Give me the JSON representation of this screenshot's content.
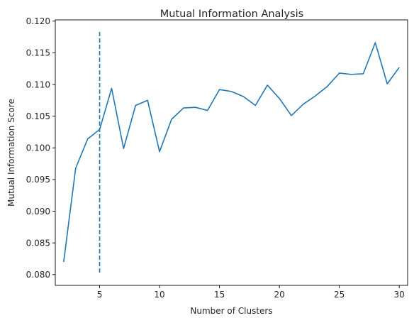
{
  "chart_data": {
    "type": "line",
    "title": "Mutual Information Analysis",
    "xlabel": "Number of Clusters",
    "ylabel": "Mutual Information Score",
    "xlim": [
      1.3,
      30.7
    ],
    "ylim": [
      0.0783,
      0.1202
    ],
    "x_ticks": [
      5,
      10,
      15,
      20,
      25,
      30
    ],
    "x_tick_labels": [
      "5",
      "10",
      "15",
      "20",
      "25",
      "30"
    ],
    "y_ticks": [
      0.08,
      0.085,
      0.09,
      0.095,
      0.1,
      0.105,
      0.11,
      0.115,
      0.12
    ],
    "y_tick_labels": [
      "0.080",
      "0.085",
      "0.090",
      "0.095",
      "0.100",
      "0.105",
      "0.110",
      "0.115",
      "0.120"
    ],
    "grid": false,
    "series": [
      {
        "name": "mutual_information",
        "color": "#1f77b4",
        "style": "solid",
        "x": [
          2,
          3,
          4,
          5,
          6,
          7,
          8,
          9,
          10,
          11,
          12,
          13,
          14,
          15,
          16,
          17,
          18,
          19,
          20,
          21,
          22,
          23,
          24,
          25,
          26,
          27,
          28,
          29,
          30
        ],
        "y": [
          0.082,
          0.0968,
          0.1014,
          0.1029,
          0.1094,
          0.0999,
          0.1067,
          0.1075,
          0.0994,
          0.1045,
          0.1063,
          0.1064,
          0.1059,
          0.1092,
          0.1089,
          0.1081,
          0.1067,
          0.1099,
          0.1078,
          0.1051,
          0.1069,
          0.1082,
          0.1097,
          0.1118,
          0.1116,
          0.1117,
          0.1166,
          0.1101,
          0.1127
        ]
      }
    ],
    "vlines": [
      {
        "name": "optimal_k",
        "x": 5,
        "ymin": 0.0802,
        "ymax": 0.1183,
        "color": "#1f77b4",
        "style": "dashed"
      }
    ]
  }
}
